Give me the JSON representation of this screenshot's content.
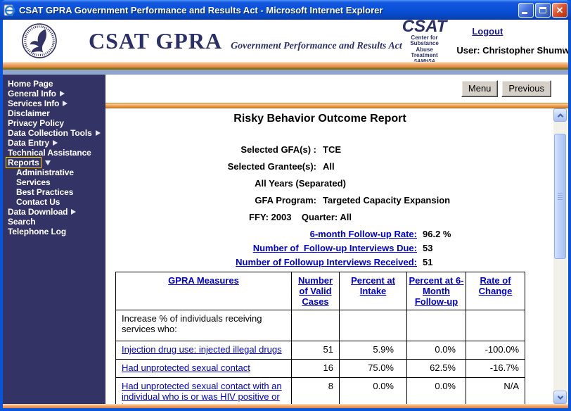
{
  "window": {
    "title": "CSAT GPRA Government Performance and Results Act - Microsoft Internet Explorer"
  },
  "header": {
    "brand_title": "CSAT GPRA",
    "brand_subtitle": "Government Performance and Results Act",
    "csat_logo": {
      "acronym": "CSAT",
      "line1": "Center for Substance",
      "line2": "Abuse Treatment",
      "line3": "SAMHSA"
    },
    "logout_label": "Logout",
    "user_label": "User: Christopher Shumway"
  },
  "toolbar": {
    "menu_label": "Menu",
    "previous_label": "Previous"
  },
  "sidebar": {
    "items": [
      {
        "label": "Home Page"
      },
      {
        "label": "General Info",
        "arrow": "right"
      },
      {
        "label": "Services Info",
        "arrow": "right"
      },
      {
        "label": "Disclaimer"
      },
      {
        "label": "Privacy Policy"
      },
      {
        "label": "Data Collection Tools",
        "arrow": "right"
      },
      {
        "label": "Data Entry",
        "arrow": "right"
      },
      {
        "label": "Technical Assistance"
      },
      {
        "label": "Reports",
        "arrow": "down",
        "focused": true
      },
      {
        "label": "Administrative",
        "indent": true
      },
      {
        "label": "Services",
        "indent": true
      },
      {
        "label": "Best Practices",
        "indent": true
      },
      {
        "label": "Contact Us",
        "indent": true
      },
      {
        "label": "Data Download",
        "arrow": "right"
      },
      {
        "label": "Search"
      },
      {
        "label": "Telephone Log"
      }
    ]
  },
  "report": {
    "title": "Risky Behavior Outcome Report",
    "params": [
      {
        "type": "pair",
        "label": "Selected GFA(s) :",
        "value": "TCE"
      },
      {
        "type": "pair",
        "label": "Selected Grantee(s):",
        "value": "All"
      },
      {
        "type": "center",
        "text": "All Years (Separated)"
      },
      {
        "type": "pair",
        "label": "GFA Program:",
        "value": "Targeted Capacity Expansion"
      },
      {
        "type": "center",
        "text": "FFY: 2003    Quarter: All"
      }
    ],
    "stats": [
      {
        "label": "6-month Follow-up Rate:",
        "value": "96.2 %"
      },
      {
        "label": "Number of  Follow-up Interviews Due:",
        "value": "53"
      },
      {
        "label": "Number of Followup Interviews Received:",
        "value": "51"
      }
    ]
  },
  "table": {
    "headers": [
      "GPRA Measures",
      "Number of Valid Cases",
      "Percent at Intake",
      "Percent at 6-Month Follow-up",
      "Rate of Change"
    ],
    "rows": [
      {
        "measure": "Increase % of individuals receiving services who:",
        "link": false,
        "section": true,
        "values": [
          "",
          "",
          "",
          ""
        ]
      },
      {
        "measure": "Injection drug use: injected illegal drugs",
        "link": true,
        "values": [
          "51",
          "5.9%",
          "0.0%",
          "-100.0%"
        ]
      },
      {
        "measure": "Had unprotected sexual contact",
        "link": true,
        "values": [
          "16",
          "75.0%",
          "62.5%",
          "-16.7%"
        ]
      },
      {
        "measure": "Had unprotected sexual contact with an individual who is or was HIV positive or has AIDS",
        "link": true,
        "values": [
          "8",
          "0.0%",
          "0.0%",
          "N/A"
        ]
      }
    ]
  },
  "colors": {
    "sidebar_navy": "#333366",
    "link_blue": "#0000CC",
    "titlebar_blue": "#0A50D8",
    "stripe_orange": "#E89552",
    "stripe_steel": "#8FA5CE",
    "focus_yellow": "#FFD900",
    "button_gray": "#D4D0C8"
  }
}
